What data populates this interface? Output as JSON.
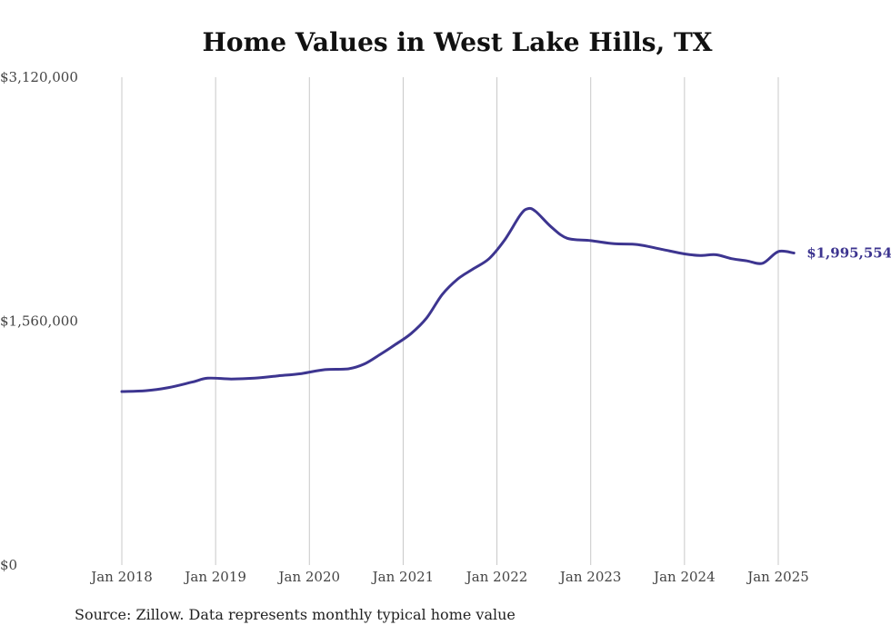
{
  "page": {
    "title": "Home Values in West Lake Hills, TX",
    "source": "Source: Zillow. Data represents monthly typical home value"
  },
  "chart_data": {
    "type": "line",
    "title": "Home Values in West Lake Hills, TX",
    "xlabel": "",
    "ylabel": "",
    "ylim": [
      0,
      3120000
    ],
    "y_ticks": [
      0,
      1560000,
      3120000
    ],
    "y_tick_labels": [
      "$0",
      "$1,560,000",
      "$3,120,000"
    ],
    "x_tick_labels": [
      "Jan 2018",
      "Jan 2019",
      "Jan 2020",
      "Jan 2021",
      "Jan 2022",
      "Jan 2023",
      "Jan 2024",
      "Jan 2025"
    ],
    "x_tick_dates": [
      "2018-01",
      "2019-01",
      "2020-01",
      "2021-01",
      "2022-01",
      "2023-01",
      "2024-01",
      "2025-01"
    ],
    "grid": "vertical",
    "line_color": "#3d3590",
    "end_label": "$1,995,554",
    "series": [
      {
        "x": [
          "2018-01",
          "2018-04",
          "2018-07",
          "2018-10",
          "2018-12",
          "2019-03",
          "2019-06",
          "2019-09",
          "2019-12",
          "2020-03",
          "2020-06",
          "2020-08",
          "2020-10",
          "2020-12",
          "2021-02",
          "2021-04",
          "2021-06",
          "2021-08",
          "2021-10",
          "2021-12",
          "2022-02",
          "2022-04",
          "2022-05",
          "2022-06",
          "2022-08",
          "2022-10",
          "2023-01",
          "2023-04",
          "2023-07",
          "2023-10",
          "2024-01",
          "2024-03",
          "2024-05",
          "2024-07",
          "2024-09",
          "2024-11",
          "2025-01",
          "2025-03"
        ],
        "values": [
          1110000,
          1115000,
          1135000,
          1170000,
          1195000,
          1190000,
          1195000,
          1210000,
          1225000,
          1250000,
          1255000,
          1285000,
          1345000,
          1410000,
          1480000,
          1580000,
          1730000,
          1830000,
          1895000,
          1960000,
          2080000,
          2240000,
          2280000,
          2260000,
          2160000,
          2090000,
          2075000,
          2055000,
          2050000,
          2020000,
          1990000,
          1980000,
          1985000,
          1960000,
          1945000,
          1930000,
          2005000,
          1995554
        ]
      }
    ]
  }
}
